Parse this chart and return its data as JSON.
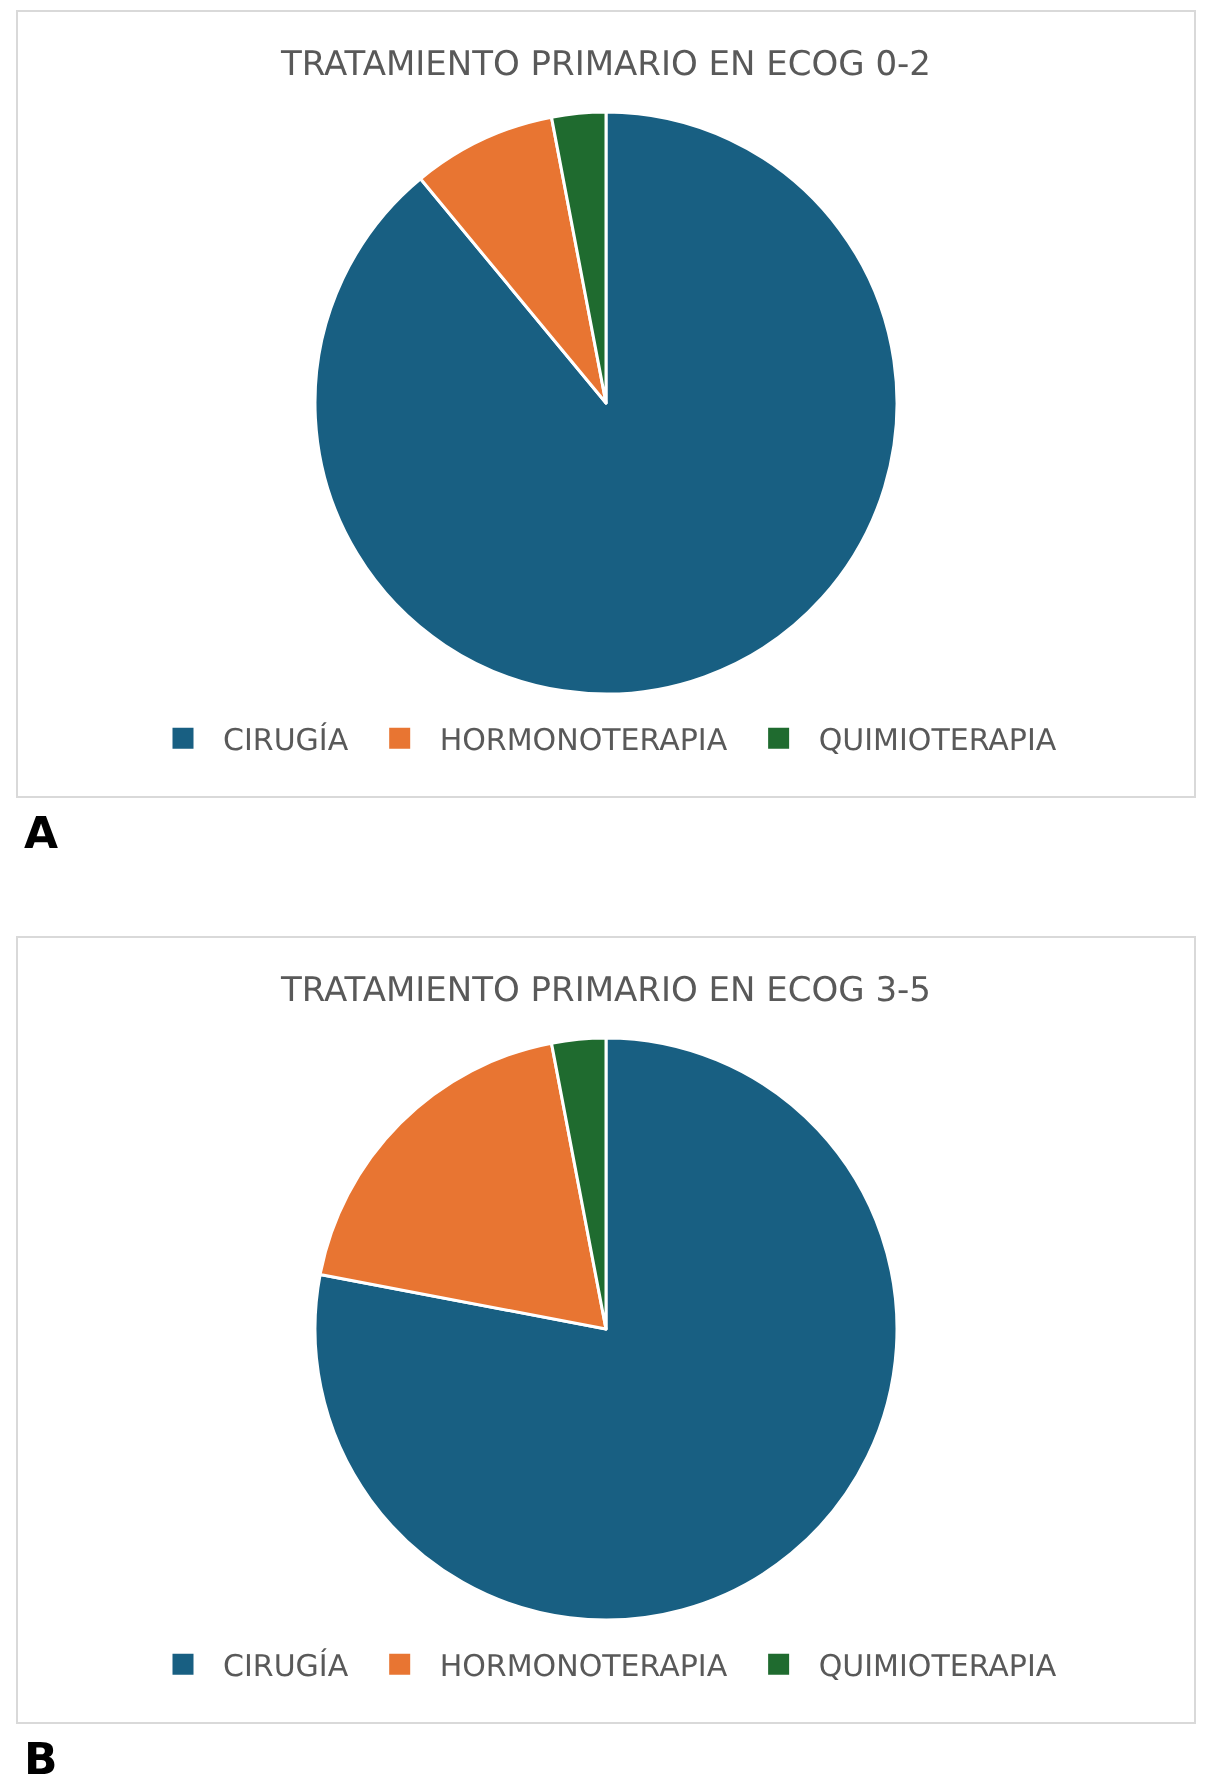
{
  "chart_data": [
    {
      "type": "pie",
      "title": "TRATAMIENTO PRIMARIO EN ECOG 0-2",
      "categories": [
        "CIRUGÍA",
        "HORMONOTERAPIA",
        "QUIMIOTERAPIA"
      ],
      "values": [
        89,
        8,
        3
      ],
      "colors": [
        "#185f82",
        "#e87532",
        "#1f6b2f"
      ],
      "legend": "bottom",
      "annotations": [
        "A"
      ]
    },
    {
      "type": "pie",
      "title": "TRATAMIENTO PRIMARIO EN ECOG 3-5",
      "categories": [
        "CIRUGÍA",
        "HORMONOTERAPIA",
        "QUIMIOTERAPIA"
      ],
      "values": [
        78,
        19,
        3
      ],
      "colors": [
        "#185f82",
        "#e87532",
        "#1f6b2f"
      ],
      "legend": "bottom",
      "annotations": [
        "B"
      ]
    }
  ]
}
